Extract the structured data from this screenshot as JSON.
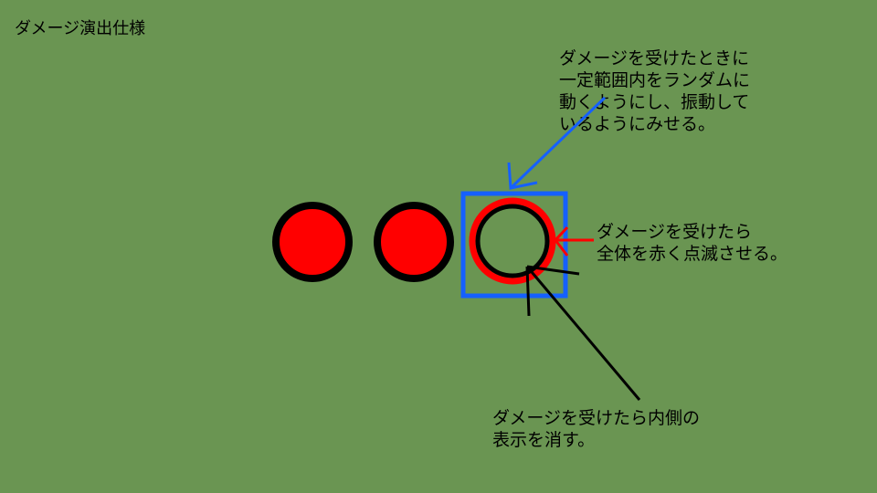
{
  "title": "ダメージ演出仕様",
  "colors": {
    "background": "#6a9552",
    "life_fill": "#ff0000",
    "outline": "#000000",
    "shake_box": "#1560ff",
    "flash_arrow": "#ff0000"
  },
  "notes": {
    "shake": {
      "lines": [
        "ダメージを受けたときに",
        "一定範囲内をランダムに",
        "動くようにし、振動して",
        "いるようにみせる。"
      ]
    },
    "flash": {
      "lines": [
        "ダメージを受けたら",
        "全体を赤く点滅させる。"
      ]
    },
    "inner": {
      "lines": [
        "ダメージを受けたら内側の",
        "表示を消す。"
      ]
    }
  },
  "life_icons": [
    {
      "state": "full"
    },
    {
      "state": "full"
    },
    {
      "state": "damaged"
    }
  ]
}
